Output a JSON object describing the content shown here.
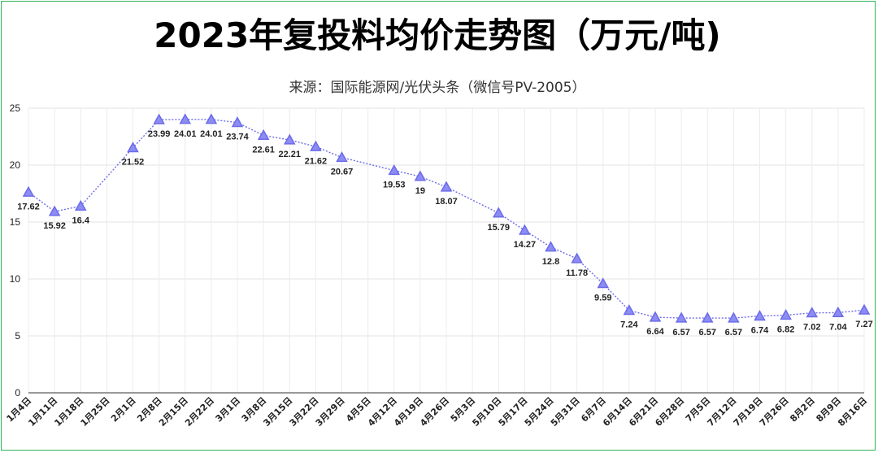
{
  "title": "2023年复投料均价走势图（万元/吨)",
  "subtitle": "来源：国际能源网/光伏头条（微信号PV-2005）",
  "chart_data": {
    "type": "line",
    "title": "2023年复投料均价走势图（万元/吨)",
    "subtitle": "来源：国际能源网/光伏头条（微信号PV-2005）",
    "xlabel": "",
    "ylabel": "",
    "ylim": [
      0,
      25
    ],
    "yticks": [
      "0",
      "5",
      "10",
      "15",
      "20",
      "25"
    ],
    "grid": true,
    "categories": [
      "1月4日",
      "1月11日",
      "1月18日",
      "1月25日",
      "2月1日",
      "2月8日",
      "2月15日",
      "2月22日",
      "3月1日",
      "3月8日",
      "3月15日",
      "3月22日",
      "3月29日",
      "4月5日",
      "4月12日",
      "4月19日",
      "4月26日",
      "5月3日",
      "5月10日",
      "5月17日",
      "5月24日",
      "5月31日",
      "6月7日",
      "6月14日",
      "6月21日",
      "6月28日",
      "7月5日",
      "7月12日",
      "7月19日",
      "7月26日",
      "8月2日",
      "8月9日",
      "8月16日"
    ],
    "values": [
      17.62,
      15.92,
      16.4,
      null,
      21.52,
      23.99,
      24.01,
      24.01,
      23.74,
      22.61,
      22.21,
      21.62,
      20.67,
      null,
      19.53,
      19,
      18.07,
      null,
      15.79,
      14.27,
      12.8,
      11.78,
      9.59,
      7.24,
      6.64,
      6.57,
      6.57,
      6.57,
      6.74,
      6.82,
      7.02,
      7.04,
      7.27
    ],
    "labels": [
      "17.62",
      "15.92",
      "16.4",
      "",
      "21.52",
      "23.99",
      "24.01",
      "24.01",
      "23.74",
      "22.61",
      "22.21",
      "21.62",
      "20.67",
      "",
      "19.53",
      "19",
      "18.07",
      "",
      "15.79",
      "14.27",
      "12.8",
      "11.78",
      "9.59",
      "7.24",
      "6.64",
      "6.57",
      "6.57",
      "6.57",
      "6.74",
      "6.82",
      "7.02",
      "7.04",
      "7.27"
    ],
    "series_color": "#6b6bea",
    "marker": "triangle"
  }
}
